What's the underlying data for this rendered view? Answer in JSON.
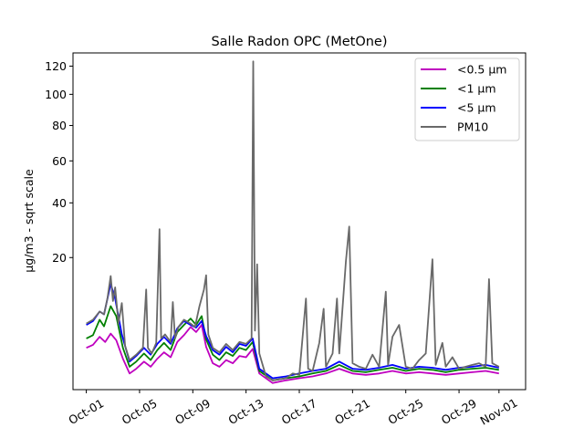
{
  "chart_data": {
    "type": "line",
    "title": "Salle Radon OPC (MetOne)",
    "xlabel": "",
    "ylabel": "µg/m3 - sqrt scale",
    "y_scale": "sqrt",
    "xlim": [
      "2023-09-30",
      "2023-11-03"
    ],
    "ylim": [
      0,
      130
    ],
    "x_ticks": [
      {
        "date": "2023-10-01",
        "label": "Oct-01"
      },
      {
        "date": "2023-10-05",
        "label": "Oct-05"
      },
      {
        "date": "2023-10-09",
        "label": "Oct-09"
      },
      {
        "date": "2023-10-13",
        "label": "Oct-13"
      },
      {
        "date": "2023-10-17",
        "label": "Oct-17"
      },
      {
        "date": "2023-10-21",
        "label": "Oct-21"
      },
      {
        "date": "2023-10-25",
        "label": "Oct-25"
      },
      {
        "date": "2023-10-29",
        "label": "Oct-29"
      },
      {
        "date": "2023-11-01",
        "label": "Nov-01"
      }
    ],
    "y_ticks": [
      20,
      40,
      60,
      80,
      100,
      120
    ],
    "grid": false,
    "legend_position": "top-right",
    "series": [
      {
        "name": "<0.5 µm",
        "color": "#bf00bf",
        "points": [
          [
            "2023-10-01T00:00",
            2.0
          ],
          [
            "2023-10-01T12:00",
            2.3
          ],
          [
            "2023-10-02T00:00",
            3.2
          ],
          [
            "2023-10-02T10:00",
            2.6
          ],
          [
            "2023-10-02T20:00",
            3.6
          ],
          [
            "2023-10-03T06:00",
            2.8
          ],
          [
            "2023-10-03T18:00",
            1.1
          ],
          [
            "2023-10-04T06:00",
            0.3
          ],
          [
            "2023-10-04T18:00",
            0.5
          ],
          [
            "2023-10-05T08:00",
            0.9
          ],
          [
            "2023-10-05T20:00",
            0.6
          ],
          [
            "2023-10-06T08:00",
            1.1
          ],
          [
            "2023-10-06T20:00",
            1.6
          ],
          [
            "2023-10-07T08:00",
            1.2
          ],
          [
            "2023-10-07T20:00",
            2.6
          ],
          [
            "2023-10-08T08:00",
            3.4
          ],
          [
            "2023-10-08T20:00",
            4.5
          ],
          [
            "2023-10-09T06:00",
            3.8
          ],
          [
            "2023-10-09T16:00",
            4.8
          ],
          [
            "2023-10-10T00:00",
            2.1
          ],
          [
            "2023-10-10T12:00",
            0.8
          ],
          [
            "2023-10-11T00:00",
            0.6
          ],
          [
            "2023-10-11T12:00",
            1.0
          ],
          [
            "2023-10-12T00:00",
            0.8
          ],
          [
            "2023-10-12T12:00",
            1.3
          ],
          [
            "2023-10-13T00:00",
            1.2
          ],
          [
            "2023-10-13T12:00",
            1.9
          ],
          [
            "2023-10-14T00:00",
            0.3
          ],
          [
            "2023-10-15T00:00",
            0.05
          ],
          [
            "2023-10-16T00:00",
            0.1
          ],
          [
            "2023-10-17T00:00",
            0.15
          ],
          [
            "2023-10-18T00:00",
            0.2
          ],
          [
            "2023-10-19T00:00",
            0.3
          ],
          [
            "2023-10-20T00:00",
            0.5
          ],
          [
            "2023-10-21T00:00",
            0.3
          ],
          [
            "2023-10-22T00:00",
            0.25
          ],
          [
            "2023-10-23T00:00",
            0.3
          ],
          [
            "2023-10-24T00:00",
            0.4
          ],
          [
            "2023-10-25T00:00",
            0.3
          ],
          [
            "2023-10-26T00:00",
            0.35
          ],
          [
            "2023-10-27T00:00",
            0.3
          ],
          [
            "2023-10-28T00:00",
            0.25
          ],
          [
            "2023-10-29T00:00",
            0.3
          ],
          [
            "2023-10-30T00:00",
            0.35
          ],
          [
            "2023-10-31T00:00",
            0.4
          ],
          [
            "2023-11-01T00:00",
            0.3
          ]
        ]
      },
      {
        "name": "<1 µm",
        "color": "#008000",
        "points": [
          [
            "2023-10-01T00:00",
            3.0
          ],
          [
            "2023-10-01T12:00",
            3.4
          ],
          [
            "2023-10-02T00:00",
            5.6
          ],
          [
            "2023-10-02T08:00",
            4.6
          ],
          [
            "2023-10-02T20:00",
            8.0
          ],
          [
            "2023-10-03T06:00",
            6.2
          ],
          [
            "2023-10-03T18:00",
            2.0
          ],
          [
            "2023-10-04T06:00",
            0.6
          ],
          [
            "2023-10-04T18:00",
            0.9
          ],
          [
            "2023-10-05T08:00",
            1.5
          ],
          [
            "2023-10-05T20:00",
            1.0
          ],
          [
            "2023-10-06T08:00",
            1.8
          ],
          [
            "2023-10-06T20:00",
            2.5
          ],
          [
            "2023-10-07T08:00",
            1.8
          ],
          [
            "2023-10-07T20:00",
            3.8
          ],
          [
            "2023-10-08T08:00",
            4.8
          ],
          [
            "2023-10-08T20:00",
            5.8
          ],
          [
            "2023-10-09T06:00",
            4.8
          ],
          [
            "2023-10-09T16:00",
            6.2
          ],
          [
            "2023-10-10T00:00",
            2.9
          ],
          [
            "2023-10-10T12:00",
            1.4
          ],
          [
            "2023-10-11T00:00",
            1.0
          ],
          [
            "2023-10-11T12:00",
            1.6
          ],
          [
            "2023-10-12T00:00",
            1.3
          ],
          [
            "2023-10-12T12:00",
            2.0
          ],
          [
            "2023-10-13T00:00",
            1.8
          ],
          [
            "2023-10-13T12:00",
            2.6
          ],
          [
            "2023-10-14T00:00",
            0.4
          ],
          [
            "2023-10-15T00:00",
            0.1
          ],
          [
            "2023-10-16T00:00",
            0.15
          ],
          [
            "2023-10-17T00:00",
            0.2
          ],
          [
            "2023-10-18T00:00",
            0.3
          ],
          [
            "2023-10-19T00:00",
            0.4
          ],
          [
            "2023-10-20T00:00",
            0.7
          ],
          [
            "2023-10-21T00:00",
            0.4
          ],
          [
            "2023-10-22T00:00",
            0.35
          ],
          [
            "2023-10-23T00:00",
            0.45
          ],
          [
            "2023-10-24T00:00",
            0.55
          ],
          [
            "2023-10-25T00:00",
            0.4
          ],
          [
            "2023-10-26T00:00",
            0.5
          ],
          [
            "2023-10-27T00:00",
            0.45
          ],
          [
            "2023-10-28T00:00",
            0.35
          ],
          [
            "2023-10-29T00:00",
            0.45
          ],
          [
            "2023-10-30T00:00",
            0.5
          ],
          [
            "2023-10-31T00:00",
            0.55
          ],
          [
            "2023-11-01T00:00",
            0.45
          ]
        ]
      },
      {
        "name": "<5 µm",
        "color": "#0000ff",
        "points": [
          [
            "2023-10-01T00:00",
            4.8
          ],
          [
            "2023-10-01T12:00",
            5.4
          ],
          [
            "2023-10-02T00:00",
            7.0
          ],
          [
            "2023-10-02T08:00",
            6.5
          ],
          [
            "2023-10-02T20:00",
            12.8
          ],
          [
            "2023-10-03T04:00",
            9.5
          ],
          [
            "2023-10-03T16:00",
            3.5
          ],
          [
            "2023-10-04T06:00",
            0.9
          ],
          [
            "2023-10-04T18:00",
            1.3
          ],
          [
            "2023-10-05T08:00",
            2.0
          ],
          [
            "2023-10-05T20:00",
            1.4
          ],
          [
            "2023-10-06T08:00",
            2.4
          ],
          [
            "2023-10-06T20:00",
            3.2
          ],
          [
            "2023-10-07T08:00",
            2.4
          ],
          [
            "2023-10-07T20:00",
            4.3
          ],
          [
            "2023-10-08T08:00",
            5.4
          ],
          [
            "2023-10-08T20:00",
            4.8
          ],
          [
            "2023-10-09T06:00",
            4.4
          ],
          [
            "2023-10-09T16:00",
            5.4
          ],
          [
            "2023-10-10T00:00",
            3.3
          ],
          [
            "2023-10-10T12:00",
            1.8
          ],
          [
            "2023-10-11T00:00",
            1.4
          ],
          [
            "2023-10-11T12:00",
            2.1
          ],
          [
            "2023-10-12T00:00",
            1.6
          ],
          [
            "2023-10-12T12:00",
            2.4
          ],
          [
            "2023-10-13T00:00",
            2.2
          ],
          [
            "2023-10-13T12:00",
            3.0
          ],
          [
            "2023-10-14T00:00",
            0.5
          ],
          [
            "2023-10-15T00:00",
            0.15
          ],
          [
            "2023-10-16T00:00",
            0.2
          ],
          [
            "2023-10-17T00:00",
            0.3
          ],
          [
            "2023-10-18T00:00",
            0.4
          ],
          [
            "2023-10-19T00:00",
            0.5
          ],
          [
            "2023-10-20T00:00",
            0.9
          ],
          [
            "2023-10-21T00:00",
            0.5
          ],
          [
            "2023-10-22T00:00",
            0.45
          ],
          [
            "2023-10-23T00:00",
            0.55
          ],
          [
            "2023-10-24T00:00",
            0.7
          ],
          [
            "2023-10-25T00:00",
            0.5
          ],
          [
            "2023-10-26T00:00",
            0.6
          ],
          [
            "2023-10-27T00:00",
            0.55
          ],
          [
            "2023-10-28T00:00",
            0.45
          ],
          [
            "2023-10-29T00:00",
            0.55
          ],
          [
            "2023-10-30T00:00",
            0.6
          ],
          [
            "2023-10-31T00:00",
            0.7
          ],
          [
            "2023-11-01T00:00",
            0.55
          ]
        ]
      },
      {
        "name": "PM10",
        "color": "#696969",
        "points": [
          [
            "2023-10-01T00:00",
            5.0
          ],
          [
            "2023-10-01T12:00",
            5.6
          ],
          [
            "2023-10-02T00:00",
            7.0
          ],
          [
            "2023-10-02T08:00",
            6.5
          ],
          [
            "2023-10-02T14:00",
            9.5
          ],
          [
            "2023-10-02T20:00",
            14.8
          ],
          [
            "2023-10-03T00:00",
            9.0
          ],
          [
            "2023-10-03T04:00",
            12.0
          ],
          [
            "2023-10-03T10:00",
            5.0
          ],
          [
            "2023-10-03T16:00",
            8.6
          ],
          [
            "2023-10-03T22:00",
            2.2
          ],
          [
            "2023-10-04T06:00",
            1.0
          ],
          [
            "2023-10-04T18:00",
            1.4
          ],
          [
            "2023-10-05T06:00",
            2.0
          ],
          [
            "2023-10-05T12:00",
            11.5
          ],
          [
            "2023-10-05T15:00",
            2.0
          ],
          [
            "2023-10-05T22:00",
            1.5
          ],
          [
            "2023-10-06T06:00",
            2.5
          ],
          [
            "2023-10-06T12:00",
            29.5
          ],
          [
            "2023-10-06T15:00",
            3.0
          ],
          [
            "2023-10-06T22:00",
            3.5
          ],
          [
            "2023-10-07T08:00",
            2.6
          ],
          [
            "2023-10-07T12:00",
            8.8
          ],
          [
            "2023-10-07T16:00",
            3.0
          ],
          [
            "2023-10-07T22:00",
            4.5
          ],
          [
            "2023-10-08T08:00",
            5.6
          ],
          [
            "2023-10-08T20:00",
            5.0
          ],
          [
            "2023-10-09T04:00",
            4.5
          ],
          [
            "2023-10-09T12:00",
            8.0
          ],
          [
            "2023-10-09T20:00",
            11.5
          ],
          [
            "2023-10-10T00:00",
            15.0
          ],
          [
            "2023-10-10T04:00",
            3.5
          ],
          [
            "2023-10-10T12:00",
            2.0
          ],
          [
            "2023-10-11T00:00",
            1.6
          ],
          [
            "2023-10-11T12:00",
            2.4
          ],
          [
            "2023-10-12T00:00",
            1.8
          ],
          [
            "2023-10-12T12:00",
            2.6
          ],
          [
            "2023-10-13T00:00",
            2.4
          ],
          [
            "2023-10-13T10:00",
            3.0
          ],
          [
            "2023-10-13T13:00",
            123.5
          ],
          [
            "2023-10-13T16:00",
            4.0
          ],
          [
            "2023-10-13T20:00",
            18.0
          ],
          [
            "2023-10-14T00:00",
            1.5
          ],
          [
            "2023-10-14T12:00",
            0.2
          ],
          [
            "2023-10-15T00:00",
            0.1
          ],
          [
            "2023-10-16T00:00",
            0.15
          ],
          [
            "2023-10-16T12:00",
            0.3
          ],
          [
            "2023-10-17T00:00",
            0.25
          ],
          [
            "2023-10-17T12:00",
            9.5
          ],
          [
            "2023-10-17T16:00",
            0.5
          ],
          [
            "2023-10-18T00:00",
            0.4
          ],
          [
            "2023-10-18T12:00",
            2.5
          ],
          [
            "2023-10-18T20:00",
            7.5
          ],
          [
            "2023-10-19T00:00",
            0.6
          ],
          [
            "2023-10-19T12:00",
            1.5
          ],
          [
            "2023-10-19T20:00",
            9.5
          ],
          [
            "2023-10-20T00:00",
            1.5
          ],
          [
            "2023-10-20T12:00",
            19.0
          ],
          [
            "2023-10-20T18:00",
            30.5
          ],
          [
            "2023-10-21T00:00",
            0.8
          ],
          [
            "2023-10-21T12:00",
            0.6
          ],
          [
            "2023-10-22T00:00",
            0.5
          ],
          [
            "2023-10-22T12:00",
            1.4
          ],
          [
            "2023-10-23T00:00",
            0.6
          ],
          [
            "2023-10-23T12:00",
            11.0
          ],
          [
            "2023-10-23T16:00",
            0.7
          ],
          [
            "2023-10-24T00:00",
            3.2
          ],
          [
            "2023-10-24T12:00",
            4.8
          ],
          [
            "2023-10-25T00:00",
            0.6
          ],
          [
            "2023-10-25T12:00",
            0.5
          ],
          [
            "2023-10-26T00:00",
            1.0
          ],
          [
            "2023-10-26T12:00",
            1.5
          ],
          [
            "2023-10-27T00:00",
            19.5
          ],
          [
            "2023-10-27T06:00",
            0.7
          ],
          [
            "2023-10-27T18:00",
            2.5
          ],
          [
            "2023-10-28T00:00",
            0.6
          ],
          [
            "2023-10-28T12:00",
            1.2
          ],
          [
            "2023-10-29T00:00",
            0.5
          ],
          [
            "2023-10-29T12:00",
            0.6
          ],
          [
            "2023-10-30T00:00",
            0.7
          ],
          [
            "2023-10-30T12:00",
            0.8
          ],
          [
            "2023-10-31T00:00",
            0.6
          ],
          [
            "2023-10-31T06:00",
            14.0
          ],
          [
            "2023-10-31T12:00",
            0.8
          ],
          [
            "2023-11-01T00:00",
            0.6
          ]
        ]
      }
    ]
  }
}
